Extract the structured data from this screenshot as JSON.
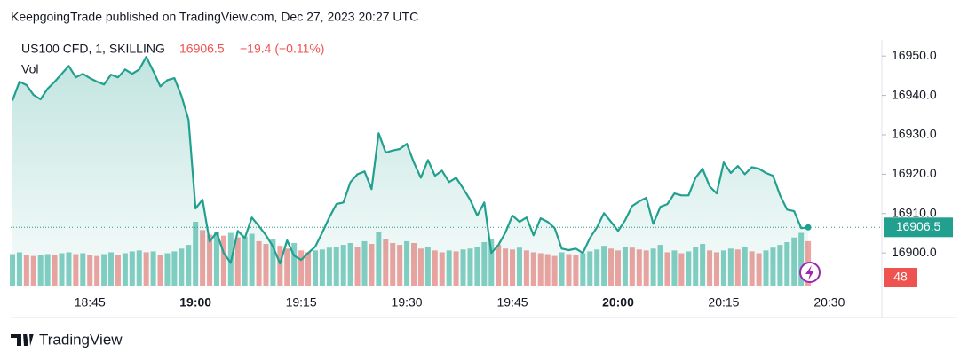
{
  "header": {
    "published": "KeepgoingTrade published on TradingView.com, Dec 27, 2023 20:27 UTC",
    "symbol": "US100 CFD, 1, SKILLING",
    "last": "16906.5",
    "change": "−19.4 (−0.11%)",
    "volume_label": "Vol"
  },
  "footer": {
    "brand": "TradingView"
  },
  "chart_data": {
    "type": "line",
    "categories": [
      null,
      null,
      null,
      null,
      null,
      null,
      null,
      null,
      null,
      null,
      null,
      "18:45",
      null,
      null,
      null,
      null,
      null,
      null,
      null,
      null,
      null,
      null,
      null,
      null,
      null,
      null,
      "19:00",
      null,
      null,
      null,
      null,
      null,
      null,
      null,
      null,
      null,
      null,
      null,
      null,
      null,
      null,
      "19:15",
      null,
      null,
      null,
      null,
      null,
      null,
      null,
      null,
      null,
      null,
      null,
      null,
      null,
      null,
      "19:30",
      null,
      null,
      null,
      null,
      null,
      null,
      null,
      null,
      null,
      null,
      null,
      null,
      null,
      null,
      "19:45",
      null,
      null,
      null,
      null,
      null,
      null,
      null,
      null,
      null,
      null,
      null,
      null,
      null,
      null,
      "20:00",
      null,
      null,
      null,
      null,
      null,
      null,
      null,
      null,
      null,
      null,
      null,
      null,
      null,
      null,
      "20:15",
      null,
      null,
      null,
      null,
      null,
      null,
      null,
      null,
      null,
      null,
      null,
      null,
      null,
      null,
      "20:30"
    ],
    "series": [
      {
        "name": "US100 CFD",
        "color": "#22a08f",
        "values": [
          16938.7,
          16943.5,
          16942.6,
          16940.1,
          16939,
          16941.7,
          16943.5,
          16945.5,
          16947.5,
          16944.6,
          16945.5,
          16944.4,
          16943.5,
          16942.8,
          16945.3,
          16944.6,
          16946.6,
          16945.5,
          16946.6,
          16949.8,
          16946.2,
          16942.3,
          16943.9,
          16944.4,
          16939.9,
          16933.8,
          16911.3,
          16913.5,
          16902.9,
          16905.2,
          16900,
          16897.5,
          16905.6,
          16903.8,
          16909,
          16906.8,
          16904.5,
          16901.6,
          16897.3,
          16903.2,
          16899.3,
          16898.2,
          16900,
          16901.6,
          16905.2,
          16909,
          16912.4,
          16912.8,
          16918,
          16920,
          16920.7,
          16916.2,
          16930.4,
          16925.5,
          16926,
          16926.4,
          16927.7,
          16923,
          16919.1,
          16923.6,
          16919.6,
          16920.9,
          16918,
          16919.1,
          16916.4,
          16913.5,
          16909.5,
          16912.8,
          16900,
          16902,
          16905.2,
          16909.5,
          16907.9,
          16909,
          16904.5,
          16908.8,
          16907.9,
          16906.3,
          16901.1,
          16900.7,
          16901.1,
          16900,
          16903.8,
          16906.5,
          16910.1,
          16907.9,
          16905.6,
          16908.3,
          16911.9,
          16913.1,
          16914,
          16907.4,
          16911.7,
          16912.4,
          16915.1,
          16914.6,
          16914.6,
          16919.1,
          16921.4,
          16916.9,
          16915.1,
          16923,
          16920.3,
          16922.1,
          16920,
          16921.8,
          16921.4,
          16920.3,
          16919.6,
          16914.6,
          16911,
          16910.6,
          16906.3,
          16906.5,
          null,
          null,
          null
        ]
      },
      {
        "name": "Vol",
        "type": "volume",
        "up_color": "#84cfc3",
        "down_color": "#f0a3a0",
        "values": [
          34,
          36,
          33,
          32,
          33,
          34,
          33,
          35,
          36,
          34,
          35,
          33,
          32,
          34,
          36,
          33,
          35,
          37,
          38,
          36,
          37,
          33,
          35,
          37,
          40,
          44,
          69,
          60,
          55,
          58,
          54,
          57,
          52,
          53,
          56,
          48,
          45,
          50,
          43,
          40,
          46,
          38,
          36,
          38,
          39,
          41,
          42,
          44,
          46,
          42,
          48,
          45,
          58,
          50,
          46,
          44,
          48,
          46,
          40,
          42,
          38,
          36,
          38,
          37,
          39,
          40,
          42,
          47,
          50,
          44,
          40,
          39,
          41,
          38,
          36,
          35,
          34,
          32,
          36,
          34,
          33,
          35,
          37,
          39,
          43,
          40,
          38,
          42,
          41,
          39,
          38,
          40,
          44,
          36,
          38,
          35,
          37,
          42,
          45,
          38,
          36,
          38,
          40,
          39,
          42,
          37,
          35,
          38,
          41,
          44,
          47,
          52,
          57,
          48,
          null,
          null,
          null
        ]
      }
    ],
    "ylim": [
      16891.7,
      16954.1
    ],
    "yticks": [
      {
        "value": 16900,
        "label": "16900.0"
      },
      {
        "value": 16910,
        "label": "16910.0"
      },
      {
        "value": 16920,
        "label": "16920.0"
      },
      {
        "value": 16930,
        "label": "16930.0"
      },
      {
        "value": 16940,
        "label": "16940.0"
      },
      {
        "value": 16950,
        "label": "16950.0"
      }
    ],
    "change_color": "#ef5350",
    "volume_tag_color": "#ef5350"
  }
}
